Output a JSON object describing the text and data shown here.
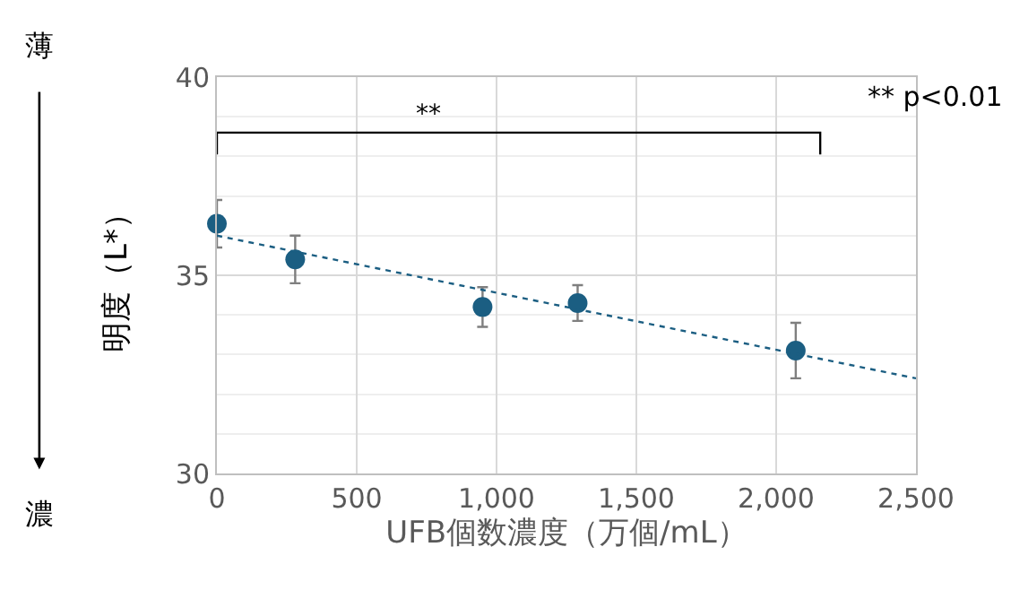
{
  "chart_data": {
    "type": "scatter",
    "xlabel": "UFB個数濃度（万個/mL）",
    "ylabel": "明度（L*）",
    "x": [
      0,
      280,
      950,
      1290,
      2070
    ],
    "series": [
      {
        "color": "#1b5e82",
        "values": [
          36.3,
          35.4,
          34.2,
          34.3,
          33.1
        ],
        "errors": [
          0.6,
          0.6,
          0.5,
          0.45,
          0.7
        ]
      },
      {
        "type": "line",
        "color": "#1b5e82",
        "x": [
          0,
          2500
        ],
        "values": [
          36.0,
          32.4
        ],
        "line_style": "dotted",
        "marker": "none"
      }
    ],
    "annotations": [
      "**",
      "** p<0.01",
      "薄",
      "濃"
    ],
    "xlim": [
      0,
      2500
    ],
    "xticks": [
      0,
      {
        "value": 500,
        "label": "500"
      },
      {
        "value": 1000,
        "label": "1,000"
      },
      {
        "value": 1500,
        "label": "1,500"
      },
      {
        "value": 2000,
        "label": "2,000"
      },
      {
        "value": 2500,
        "label": "2,500"
      }
    ],
    "ylim": [
      30,
      40
    ],
    "yticks": [
      30,
      35,
      40
    ],
    "grid": true,
    "marker": "circle"
  }
}
